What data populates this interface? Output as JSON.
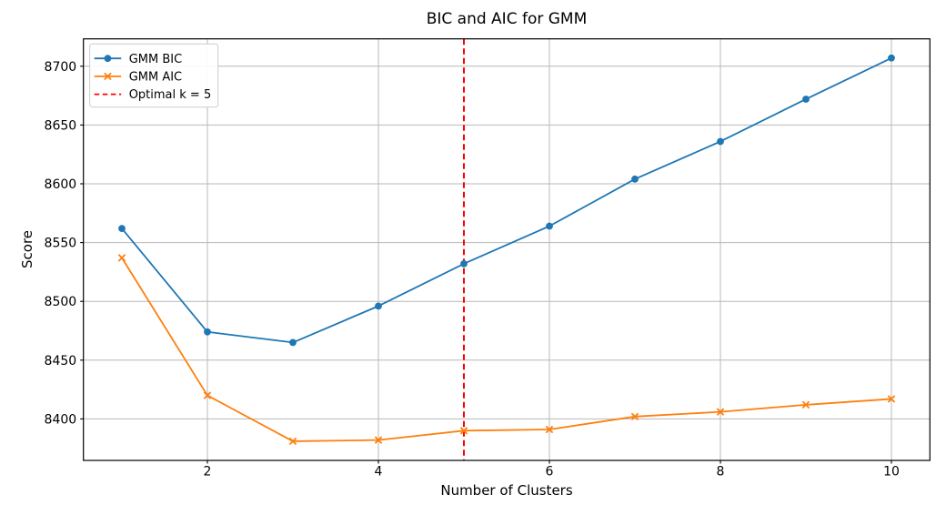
{
  "chart_data": {
    "type": "line",
    "title": "BIC and AIC for GMM",
    "xlabel": "Number of Clusters",
    "ylabel": "Score",
    "x": [
      1,
      2,
      3,
      4,
      5,
      6,
      7,
      8,
      9,
      10
    ],
    "series": [
      {
        "name": "GMM BIC",
        "color": "#1f77b4",
        "marker": "circle",
        "values": [
          8562,
          8474,
          8465,
          8496,
          8532,
          8564,
          8604,
          8636,
          8672,
          8707
        ]
      },
      {
        "name": "GMM AIC",
        "color": "#ff7f0e",
        "marker": "x",
        "values": [
          8537,
          8420,
          8381,
          8382,
          8390,
          8391,
          8402,
          8406,
          8412,
          8417
        ]
      }
    ],
    "vline": {
      "x": 5,
      "color": "#ff0000",
      "style": "dashed",
      "label": "Optimal k = 5"
    },
    "legend_entries": [
      "GMM BIC",
      "GMM AIC",
      "Optimal k = 5"
    ],
    "legend_position": "upper left",
    "xticks": [
      2,
      4,
      6,
      8,
      10
    ],
    "yticks": [
      8400,
      8450,
      8500,
      8550,
      8600,
      8650,
      8700
    ],
    "xlim": [
      0.55,
      10.45
    ],
    "ylim": [
      8364.7,
      8723.3
    ],
    "grid": true,
    "colors": {
      "grid": "#b8b8b8",
      "spine": "#000000",
      "text": "#000000",
      "legend_border": "#cccccc"
    }
  }
}
